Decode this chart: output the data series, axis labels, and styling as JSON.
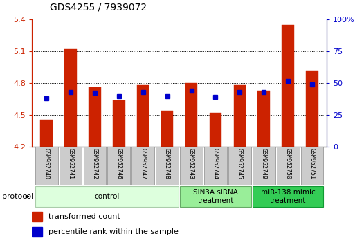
{
  "title": "GDS4255 / 7939072",
  "samples": [
    "GSM952740",
    "GSM952741",
    "GSM952742",
    "GSM952746",
    "GSM952747",
    "GSM952748",
    "GSM952743",
    "GSM952744",
    "GSM952745",
    "GSM952749",
    "GSM952750",
    "GSM952751"
  ],
  "bar_values": [
    4.46,
    5.12,
    4.76,
    4.64,
    4.78,
    4.54,
    4.8,
    4.52,
    4.78,
    4.73,
    5.35,
    4.92
  ],
  "blue_values": [
    4.66,
    4.72,
    4.71,
    4.68,
    4.72,
    4.68,
    4.73,
    4.67,
    4.72,
    4.72,
    4.82,
    4.79
  ],
  "bar_bottom": 4.2,
  "ylim_left": [
    4.2,
    5.4
  ],
  "ylim_right": [
    0,
    100
  ],
  "yticks_left": [
    4.2,
    4.5,
    4.8,
    5.1,
    5.4
  ],
  "yticks_right": [
    0,
    25,
    50,
    75,
    100
  ],
  "ytick_labels_left": [
    "4.2",
    "4.5",
    "4.8",
    "5.1",
    "5.4"
  ],
  "ytick_labels_right": [
    "0",
    "25",
    "50",
    "75",
    "100%"
  ],
  "bar_color": "#CC2200",
  "blue_color": "#0000CC",
  "groups": [
    {
      "label": "control",
      "start": 0,
      "end": 6,
      "color": "#ddffdd",
      "border": "#aaccaa"
    },
    {
      "label": "SIN3A siRNA\ntreatment",
      "start": 6,
      "end": 9,
      "color": "#99ee99",
      "border": "#66aa66"
    },
    {
      "label": "miR-138 mimic\ntreatment",
      "start": 9,
      "end": 12,
      "color": "#33cc55",
      "border": "#119933"
    }
  ],
  "legend_bar_label": "transformed count",
  "legend_blue_label": "percentile rank within the sample",
  "left_axis_color": "#CC2200",
  "right_axis_color": "#0000CC",
  "bg_color": "#ffffff",
  "grid_ticks": [
    4.5,
    4.8,
    5.1
  ]
}
